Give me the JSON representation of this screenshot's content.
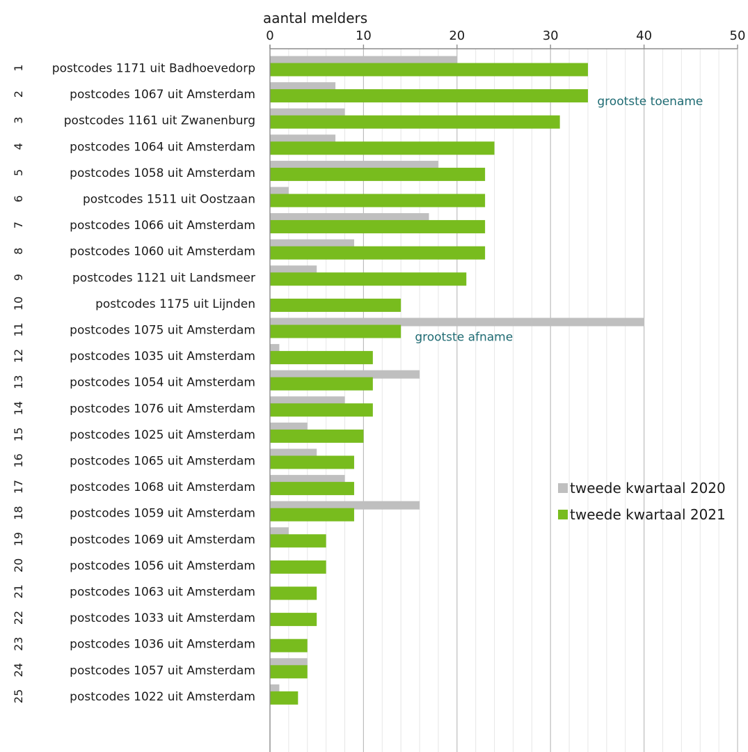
{
  "chart_data": {
    "type": "bar",
    "orientation": "horizontal",
    "xlabel": "aantal melders",
    "xlim": [
      0,
      50
    ],
    "xticks": [
      0,
      10,
      20,
      30,
      40,
      50
    ],
    "minor_grid_step": 2,
    "grid": true,
    "ranks": [
      "1",
      "2",
      "3",
      "4",
      "5",
      "6",
      "7",
      "8",
      "9",
      "10",
      "11",
      "12",
      "13",
      "14",
      "15",
      "16",
      "17",
      "18",
      "19",
      "20",
      "21",
      "22",
      "23",
      "24",
      "25"
    ],
    "categories": [
      "postcodes 1171 uit Badhoevedorp",
      "postcodes 1067 uit Amsterdam",
      "postcodes 1161 uit Zwanenburg",
      "postcodes 1064 uit Amsterdam",
      "postcodes 1058 uit Amsterdam",
      "postcodes 1511 uit Oostzaan",
      "postcodes 1066 uit Amsterdam",
      "postcodes 1060 uit Amsterdam",
      "postcodes 1121 uit Landsmeer",
      "postcodes 1175 uit Lijnden",
      "postcodes 1075 uit Amsterdam",
      "postcodes 1035 uit Amsterdam",
      "postcodes 1054 uit Amsterdam",
      "postcodes 1076 uit Amsterdam",
      "postcodes 1025 uit Amsterdam",
      "postcodes 1065 uit Amsterdam",
      "postcodes 1068 uit Amsterdam",
      "postcodes 1059 uit Amsterdam",
      "postcodes 1069 uit Amsterdam",
      "postcodes 1056 uit Amsterdam",
      "postcodes 1063 uit Amsterdam",
      "postcodes 1033 uit Amsterdam",
      "postcodes 1036 uit Amsterdam",
      "postcodes 1057 uit Amsterdam",
      "postcodes 1022 uit Amsterdam"
    ],
    "series": [
      {
        "name": "tweede kwartaal 2020",
        "color": "#bfbfbf",
        "values": [
          20,
          7,
          8,
          7,
          18,
          2,
          17,
          9,
          5,
          0,
          40,
          1,
          16,
          8,
          4,
          5,
          8,
          16,
          2,
          0,
          0,
          0,
          0,
          4,
          1
        ]
      },
      {
        "name": "tweede kwartaal 2021",
        "color": "#78bc1e",
        "values": [
          34,
          34,
          31,
          24,
          23,
          23,
          23,
          23,
          21,
          14,
          14,
          11,
          11,
          11,
          10,
          9,
          9,
          9,
          6,
          6,
          5,
          5,
          4,
          4,
          3
        ]
      }
    ],
    "annotations": [
      {
        "text": "grootste toename",
        "category_index": 1,
        "x": 35,
        "color": "#1f6b73"
      },
      {
        "text": "grootste afname",
        "category_index": 10,
        "x": 15.5,
        "color": "#1f6b73"
      }
    ],
    "legend_position": "lower-right"
  }
}
